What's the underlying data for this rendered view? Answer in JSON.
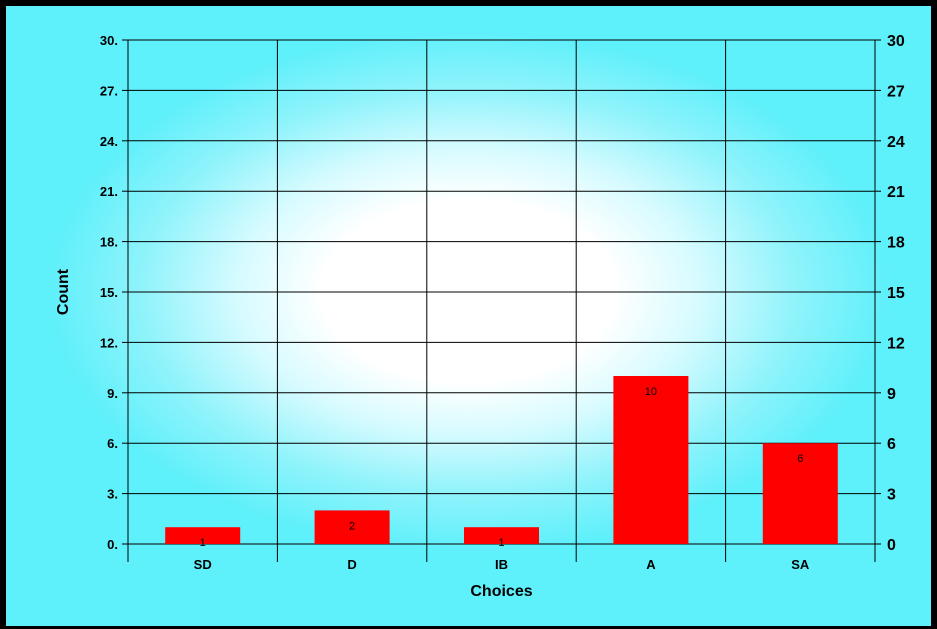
{
  "colors": {
    "bar": "#ff0000",
    "grid": "#000000",
    "background_outer": "#5ef0fb",
    "background_inner": "#ffffff"
  },
  "chart_data": {
    "type": "bar",
    "categories": [
      "SD",
      "D",
      "IB",
      "A",
      "SA"
    ],
    "values": [
      1,
      2,
      1,
      10,
      6
    ],
    "data_labels": [
      "1",
      "2",
      "1",
      "10",
      "6"
    ],
    "xlabel": "Choices",
    "ylabel": "Count",
    "ylim": [
      0,
      30
    ],
    "y_ticks": [
      0,
      3,
      6,
      9,
      12,
      15,
      18,
      21,
      24,
      27,
      30
    ],
    "y_tick_labels_left": [
      "0.",
      "3.",
      "6.",
      "9.",
      "12.",
      "15.",
      "18.",
      "21.",
      "24.",
      "27.",
      "30."
    ],
    "y_tick_labels_right": [
      "0",
      "3",
      "6",
      "9",
      "12",
      "15",
      "18",
      "21",
      "24",
      "27",
      "30"
    ],
    "grid": true,
    "legend": "none"
  }
}
